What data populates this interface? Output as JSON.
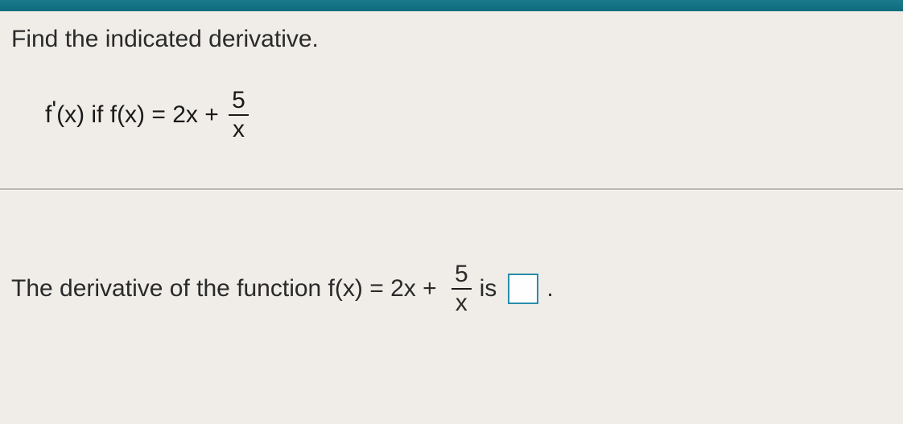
{
  "colors": {
    "top_bar_gradient_start": "#1a7a8c",
    "top_bar_gradient_end": "#0e6b7d",
    "background": "#f0ede8",
    "text": "#1a1a1a",
    "divider": "#bbb8b2",
    "answer_box_border": "#2a8ca8",
    "answer_box_bg": "#fefefe"
  },
  "typography": {
    "font_family": "Arial",
    "body_fontsize": 30
  },
  "question": {
    "prompt": "Find the indicated derivative.",
    "expression_prefix": "f'(x) if f(x) = 2x +",
    "fraction": {
      "numerator": "5",
      "denominator": "x"
    }
  },
  "answer": {
    "prefix": "The derivative of the function f(x) = 2x +",
    "fraction": {
      "numerator": "5",
      "denominator": "x"
    },
    "connector": "is",
    "suffix": "."
  }
}
